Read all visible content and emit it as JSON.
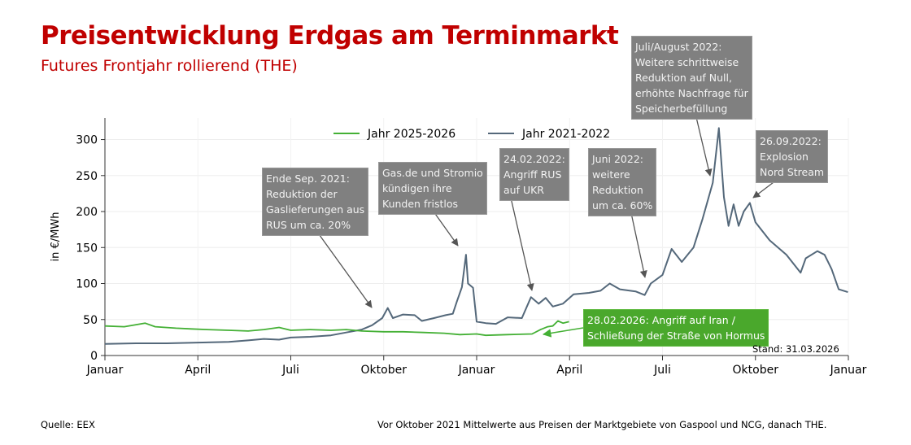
{
  "title": "Preisentwicklung Erdgas am Terminmarkt",
  "subtitle": "Futures Frontjahr rollierend (THE)",
  "source": "Quelle: EEX",
  "footnote": "Vor Oktober 2021 Mittelwerte aus Preisen der Marktgebiete von Gaspool und NCG, danach THE.",
  "stand": "Stand: 31.03.2026",
  "colors": {
    "title": "#c00000",
    "series_2025_2026": "#44b035",
    "series_2021_2022": "#54687a",
    "annotation": "#808080",
    "annotation_green": "#4aa82c"
  },
  "annotations": [
    {
      "text": "Ende Sep. 2021:\nReduktion der\nGaslieferungen aus\nRUS um ca. 20%"
    },
    {
      "text": "Gas.de und Stromio\nkündigen ihre\nKunden fristlos"
    },
    {
      "text": "24.02.2022:\nAngriff RUS\nauf UKR"
    },
    {
      "text": "Juni 2022:\nweitere\nReduktion\num ca. 60%"
    },
    {
      "text": "Juli/August 2022:\nWeitere schrittweise\nReduktion auf Null,\nerhöhte Nachfrage für\nSpeicherbefüllung"
    },
    {
      "text": "26.09.2022:\nExplosion\nNord Stream"
    },
    {
      "text": "28.02.2026: Angriff auf Iran /\nSchließung der Straße von Hormus"
    }
  ],
  "chart_data": {
    "type": "line",
    "title": "Preisentwicklung Erdgas am Terminmarkt",
    "subtitle": "Futures Frontjahr rollierend (THE)",
    "xlabel": "",
    "ylabel": "in €/MWh",
    "ylim": [
      0,
      330
    ],
    "yticks": [
      0,
      50,
      100,
      150,
      200,
      250,
      300
    ],
    "xticks": [
      "Januar",
      "April",
      "Juli",
      "Oktober",
      "Januar",
      "April",
      "Juli",
      "Oktober",
      "Januar"
    ],
    "grid": true,
    "legend": "top-center",
    "series": [
      {
        "name": "Jahr 2025-2026",
        "start_year": 2025,
        "points": [
          [
            "2025-01-01",
            41
          ],
          [
            "2025-01-20",
            40
          ],
          [
            "2025-02-10",
            45
          ],
          [
            "2025-02-20",
            40
          ],
          [
            "2025-03-10",
            38
          ],
          [
            "2025-03-25",
            37
          ],
          [
            "2025-04-10",
            36
          ],
          [
            "2025-05-01",
            35
          ],
          [
            "2025-05-20",
            34
          ],
          [
            "2025-06-05",
            36
          ],
          [
            "2025-06-20",
            39
          ],
          [
            "2025-07-01",
            35
          ],
          [
            "2025-07-20",
            36
          ],
          [
            "2025-08-10",
            35
          ],
          [
            "2025-08-25",
            36
          ],
          [
            "2025-09-10",
            34
          ],
          [
            "2025-10-01",
            33
          ],
          [
            "2025-10-20",
            33
          ],
          [
            "2025-11-10",
            32
          ],
          [
            "2025-11-30",
            31
          ],
          [
            "2025-12-15",
            29
          ],
          [
            "2026-01-01",
            30
          ],
          [
            "2026-01-10",
            28
          ],
          [
            "2026-02-01",
            29
          ],
          [
            "2026-02-25",
            30
          ],
          [
            "2026-03-03",
            36
          ],
          [
            "2026-03-10",
            40
          ],
          [
            "2026-03-15",
            41
          ],
          [
            "2026-03-20",
            48
          ],
          [
            "2026-03-25",
            45
          ],
          [
            "2026-03-31",
            47
          ]
        ]
      },
      {
        "name": "Jahr 2021-2022",
        "start_year": 2021,
        "points": [
          [
            "2021-01-01",
            16
          ],
          [
            "2021-02-01",
            17
          ],
          [
            "2021-03-01",
            17
          ],
          [
            "2021-04-01",
            18
          ],
          [
            "2021-05-01",
            19
          ],
          [
            "2021-05-20",
            21
          ],
          [
            "2021-06-05",
            23
          ],
          [
            "2021-06-20",
            22
          ],
          [
            "2021-07-01",
            25
          ],
          [
            "2021-07-20",
            26
          ],
          [
            "2021-08-10",
            28
          ],
          [
            "2021-08-25",
            32
          ],
          [
            "2021-09-10",
            36
          ],
          [
            "2021-09-20",
            42
          ],
          [
            "2021-09-30",
            52
          ],
          [
            "2021-10-05",
            66
          ],
          [
            "2021-10-10",
            52
          ],
          [
            "2021-10-20",
            57
          ],
          [
            "2021-11-01",
            56
          ],
          [
            "2021-11-08",
            48
          ],
          [
            "2021-11-20",
            52
          ],
          [
            "2021-12-01",
            56
          ],
          [
            "2021-12-08",
            58
          ],
          [
            "2021-12-12",
            75
          ],
          [
            "2021-12-17",
            95
          ],
          [
            "2021-12-21",
            140
          ],
          [
            "2021-12-23",
            100
          ],
          [
            "2021-12-28",
            94
          ],
          [
            "2022-01-01",
            47
          ],
          [
            "2022-01-10",
            45
          ],
          [
            "2022-01-20",
            44
          ],
          [
            "2022-02-01",
            53
          ],
          [
            "2022-02-15",
            52
          ],
          [
            "2022-02-24",
            81
          ],
          [
            "2022-03-01",
            72
          ],
          [
            "2022-03-08",
            80
          ],
          [
            "2022-03-15",
            68
          ],
          [
            "2022-03-25",
            72
          ],
          [
            "2022-04-05",
            85
          ],
          [
            "2022-04-20",
            87
          ],
          [
            "2022-05-01",
            90
          ],
          [
            "2022-05-10",
            100
          ],
          [
            "2022-05-20",
            92
          ],
          [
            "2022-06-05",
            89
          ],
          [
            "2022-06-14",
            84
          ],
          [
            "2022-06-20",
            100
          ],
          [
            "2022-07-01",
            112
          ],
          [
            "2022-07-10",
            148
          ],
          [
            "2022-07-20",
            130
          ],
          [
            "2022-08-01",
            150
          ],
          [
            "2022-08-10",
            190
          ],
          [
            "2022-08-20",
            240
          ],
          [
            "2022-08-26",
            316
          ],
          [
            "2022-08-31",
            220
          ],
          [
            "2022-09-05",
            180
          ],
          [
            "2022-09-10",
            210
          ],
          [
            "2022-09-15",
            180
          ],
          [
            "2022-09-20",
            200
          ],
          [
            "2022-09-26",
            212
          ],
          [
            "2022-10-01",
            185
          ],
          [
            "2022-10-15",
            160
          ],
          [
            "2022-11-01",
            140
          ],
          [
            "2022-11-15",
            115
          ],
          [
            "2022-11-20",
            135
          ],
          [
            "2022-12-01",
            145
          ],
          [
            "2022-12-08",
            140
          ],
          [
            "2022-12-15",
            120
          ],
          [
            "2022-12-22",
            92
          ],
          [
            "2022-12-31",
            88
          ]
        ]
      }
    ]
  }
}
